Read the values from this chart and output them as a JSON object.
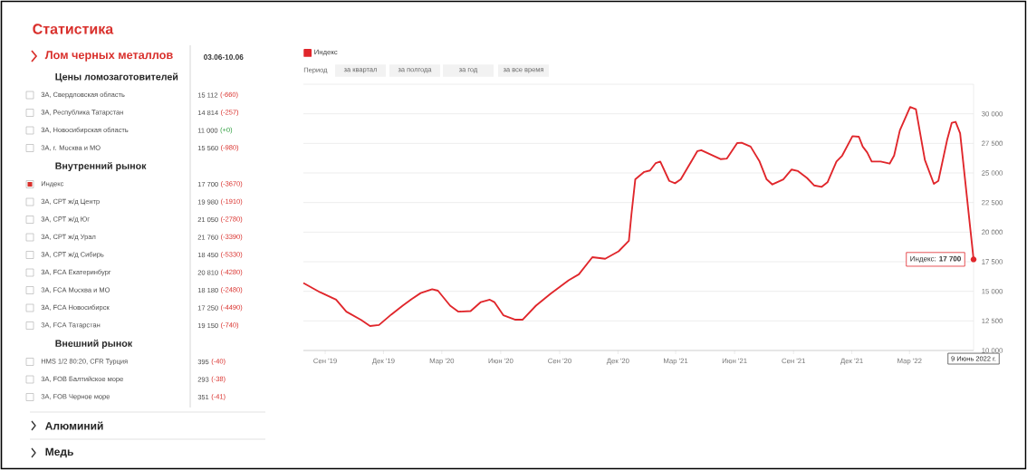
{
  "chart_data": [
    {
      "type": "other",
      "title": "Статистика",
      "subtitle": "Лом черных металлов",
      "annotations": [
        "03.06-10.06",
        "Цены ломозаготовителей",
        "3А, Свердловская область",
        "15 112",
        "(-660)",
        "3А, Республика Татарстан",
        "14 814",
        "(-257)",
        "3А, Новосибирская область",
        "11 000",
        "(+0)",
        "3А, г. Москва и МО",
        "15 560",
        "(-980)",
        "Внутренний рынок",
        "Индекс",
        "17 700",
        "(-3670)",
        "3А, СРТ ж/д Центр",
        "19 980",
        "(-1910)",
        "3А, СРТ ж/д Юг",
        "21 050",
        "(-2780)",
        "3А, СРТ ж/д Урал",
        "21 760",
        "(-3390)",
        "3А, СРТ ж/д Сибирь",
        "18 450",
        "(-5330)",
        "3А, FCA Екатеринбург",
        "20 810",
        "(-4280)",
        "3А, FCA Москва и МО",
        "18 180",
        "(-2480)",
        "3А, FCA Новосибирск",
        "17 250",
        "(-4490)",
        "3А, FCA Татарстан",
        "19 150",
        "(-740)",
        "Внешний рынок",
        "HMS 1/2 80:20, CFR Турция",
        "395",
        "(-40)",
        "3А, FOB Балтийское море",
        "293",
        "(-38)",
        "3А, FOB Черное море",
        "351",
        "(-41)",
        "Алюминий",
        "Медь"
      ]
    },
    {
      "type": "line",
      "x": [
        "2019-07-29",
        "2019-08-24",
        "2019-09-18",
        "2019-10-04",
        "2019-10-27",
        "2019-11-10",
        "2019-11-24",
        "2019-12-13",
        "2019-12-31",
        "2020-01-14",
        "2020-01-28",
        "2020-02-15",
        "2020-02-24",
        "2020-03-14",
        "2020-03-27",
        "2020-04-15",
        "2020-05-01",
        "2020-05-15",
        "2020-05-22",
        "2020-06-05",
        "2020-06-24",
        "2020-07-05",
        "2020-07-26",
        "2020-08-18",
        "2020-09-15",
        "2020-10-01",
        "2020-10-22",
        "2020-11-11",
        "2020-12-02",
        "2020-12-18",
        "2020-12-22",
        "2020-12-28",
        "2021-01-11",
        "2021-01-20",
        "2021-01-29",
        "2021-02-05",
        "2021-02-19",
        "2021-02-28",
        "2021-03-09",
        "2021-04-04",
        "2021-04-10",
        "2021-05-10",
        "2021-05-20",
        "2021-06-05",
        "2021-06-12",
        "2021-06-26",
        "2021-07-10",
        "2021-07-21",
        "2021-07-30",
        "2021-08-16",
        "2021-08-29",
        "2021-09-08",
        "2021-09-22",
        "2021-10-03",
        "2021-10-15",
        "2021-10-24",
        "2021-11-07",
        "2021-11-16",
        "2021-12-02",
        "2021-12-12",
        "2021-12-18",
        "2021-12-25",
        "2022-01-01",
        "2022-01-15",
        "2022-01-29",
        "2022-02-05",
        "2022-02-14",
        "2022-03-02",
        "2022-03-11",
        "2022-03-25",
        "2022-04-08",
        "2022-04-15",
        "2022-04-29",
        "2022-05-06",
        "2022-05-12",
        "2022-05-19",
        "2022-06-09"
      ],
      "series": [
        {
          "name": "Индекс",
          "color": "#e0262b",
          "values": [
            15700,
            14920,
            14290,
            13280,
            12580,
            12070,
            12150,
            13030,
            13790,
            14340,
            14850,
            15180,
            15050,
            13790,
            13280,
            13330,
            14090,
            14290,
            14090,
            12980,
            12600,
            12600,
            13790,
            14800,
            15930,
            16440,
            17880,
            17750,
            18380,
            19270,
            21500,
            24460,
            25090,
            25210,
            25840,
            25970,
            24330,
            24130,
            24460,
            26850,
            26930,
            26170,
            26220,
            27530,
            27560,
            27230,
            25970,
            24460,
            24030,
            24460,
            25290,
            25160,
            24580,
            23950,
            23830,
            24210,
            25970,
            26470,
            28110,
            28060,
            27230,
            26730,
            25970,
            25970,
            25790,
            26470,
            28610,
            30580,
            30380,
            26100,
            24080,
            24330,
            27860,
            29240,
            29320,
            28360,
            17700
          ]
        }
      ],
      "xlim": [
        "2019-07-29",
        "2022-06-09"
      ],
      "xticks": [
        {
          "value": "2019-09-01",
          "label": "Сен '19"
        },
        {
          "value": "2019-12-01",
          "label": "Дек '19"
        },
        {
          "value": "2020-03-01",
          "label": "Мар '20"
        },
        {
          "value": "2020-06-01",
          "label": "Июн '20"
        },
        {
          "value": "2020-09-01",
          "label": "Сен '20"
        },
        {
          "value": "2020-12-01",
          "label": "Дек '20"
        },
        {
          "value": "2021-03-01",
          "label": "Мар '21"
        },
        {
          "value": "2021-06-01",
          "label": "Июн '21"
        },
        {
          "value": "2021-09-01",
          "label": "Сен '21"
        },
        {
          "value": "2021-12-01",
          "label": "Дек '21"
        },
        {
          "value": "2022-03-01",
          "label": "Мар '22"
        }
      ],
      "ylim": [
        10000,
        32500
      ],
      "yticks": [
        {
          "value": 10000,
          "label": "10 000"
        },
        {
          "value": 12500,
          "label": "12 500"
        },
        {
          "value": 15000,
          "label": "15 000"
        },
        {
          "value": 17500,
          "label": "17 500"
        },
        {
          "value": 20000,
          "label": "20 000"
        },
        {
          "value": 22500,
          "label": "22 500"
        },
        {
          "value": 25000,
          "label": "25 000"
        },
        {
          "value": 27500,
          "label": "27 500"
        },
        {
          "value": 30000,
          "label": "30 000"
        },
        {
          "value": 32500,
          "label": null
        }
      ],
      "grid": "y",
      "legend": "top left",
      "annotations": [
        "Период",
        "за квартал",
        "за полгода",
        "за год",
        "за все время",
        {
          "text": "Индекс: **17 700**",
          "x": "2022-06-09",
          "y": 17700
        },
        "9 Июнь 2022 г."
      ]
    }
  ]
}
